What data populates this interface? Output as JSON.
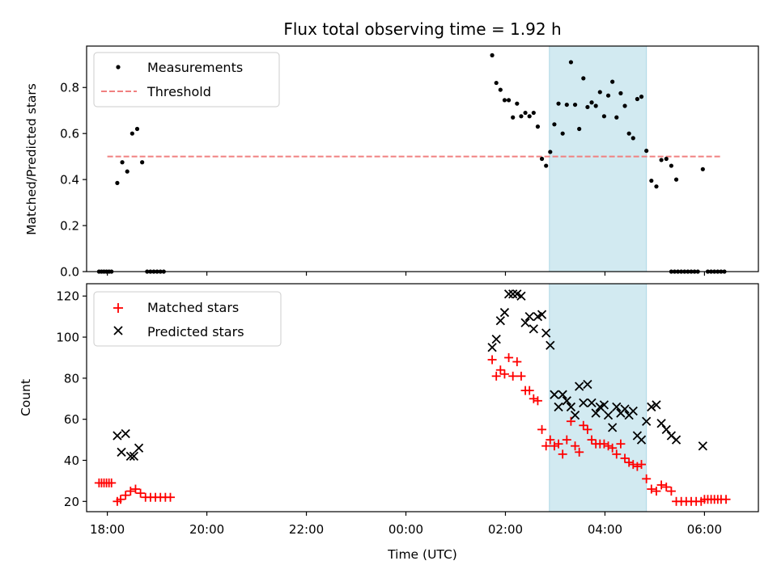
{
  "title": "Flux total observing time = 1.92 h",
  "colors": {
    "measurement": "#000000",
    "threshold": "#f08080",
    "matched": "#ff0000",
    "predicted": "#000000",
    "window": "#add8e6"
  },
  "chart_data": [
    {
      "type": "scatter",
      "ylabel": "Matched/Predicted stars",
      "ylim": [
        0,
        0.98
      ],
      "yticks": [
        "0.0",
        "0.2",
        "0.4",
        "0.6",
        "0.8"
      ],
      "xlim": [
        "17:35",
        "07:05"
      ],
      "shaded_interval": [
        "02:53",
        "04:50"
      ],
      "legend": [
        "Measurements",
        "Threshold"
      ],
      "legend_position": "upper-left",
      "threshold": {
        "value": 0.5,
        "x": [
          "18:00",
          "06:21"
        ]
      },
      "series": [
        {
          "name": "Measurements",
          "points": [
            [
              "17:50",
              0.0
            ],
            [
              "17:53",
              0.0
            ],
            [
              "17:56",
              0.0
            ],
            [
              "17:59",
              0.0
            ],
            [
              "18:02",
              0.0
            ],
            [
              "18:05",
              0.0
            ],
            [
              "18:12",
              0.385
            ],
            [
              "18:18",
              0.475
            ],
            [
              "18:24",
              0.435
            ],
            [
              "18:30",
              0.6
            ],
            [
              "18:36",
              0.62
            ],
            [
              "18:42",
              0.475
            ],
            [
              "18:48",
              0.0
            ],
            [
              "18:52",
              0.0
            ],
            [
              "18:56",
              0.0
            ],
            [
              "19:00",
              0.0
            ],
            [
              "19:04",
              0.0
            ],
            [
              "19:08",
              0.0
            ],
            [
              "01:44",
              0.94
            ],
            [
              "01:49",
              0.82
            ],
            [
              "01:54",
              0.79
            ],
            [
              "01:59",
              0.745
            ],
            [
              "02:04",
              0.745
            ],
            [
              "02:09",
              0.67
            ],
            [
              "02:14",
              0.73
            ],
            [
              "02:19",
              0.675
            ],
            [
              "02:24",
              0.69
            ],
            [
              "02:29",
              0.675
            ],
            [
              "02:34",
              0.69
            ],
            [
              "02:39",
              0.63
            ],
            [
              "02:44",
              0.49
            ],
            [
              "02:49",
              0.46
            ],
            [
              "02:54",
              0.52
            ],
            [
              "02:59",
              0.64
            ],
            [
              "03:04",
              0.73
            ],
            [
              "03:09",
              0.6
            ],
            [
              "03:14",
              0.725
            ],
            [
              "03:19",
              0.91
            ],
            [
              "03:24",
              0.725
            ],
            [
              "03:29",
              0.62
            ],
            [
              "03:34",
              0.84
            ],
            [
              "03:39",
              0.715
            ],
            [
              "03:44",
              0.735
            ],
            [
              "03:49",
              0.72
            ],
            [
              "03:54",
              0.78
            ],
            [
              "03:59",
              0.675
            ],
            [
              "04:04",
              0.765
            ],
            [
              "04:09",
              0.825
            ],
            [
              "04:14",
              0.67
            ],
            [
              "04:19",
              0.775
            ],
            [
              "04:24",
              0.72
            ],
            [
              "04:29",
              0.6
            ],
            [
              "04:34",
              0.58
            ],
            [
              "04:39",
              0.75
            ],
            [
              "04:44",
              0.76
            ],
            [
              "04:50",
              0.525
            ],
            [
              "04:56",
              0.395
            ],
            [
              "05:02",
              0.37
            ],
            [
              "05:08",
              0.485
            ],
            [
              "05:14",
              0.49
            ],
            [
              "05:20",
              0.46
            ],
            [
              "05:26",
              0.4
            ],
            [
              "05:20",
              0.0
            ],
            [
              "05:24",
              0.0
            ],
            [
              "05:28",
              0.0
            ],
            [
              "05:32",
              0.0
            ],
            [
              "05:36",
              0.0
            ],
            [
              "05:40",
              0.0
            ],
            [
              "05:44",
              0.0
            ],
            [
              "05:48",
              0.0
            ],
            [
              "05:52",
              0.0
            ],
            [
              "05:58",
              0.445
            ],
            [
              "06:04",
              0.0
            ],
            [
              "06:08",
              0.0
            ],
            [
              "06:12",
              0.0
            ],
            [
              "06:16",
              0.0
            ],
            [
              "06:20",
              0.0
            ],
            [
              "06:24",
              0.0
            ]
          ]
        }
      ]
    },
    {
      "type": "scatter",
      "xlabel": "Time (UTC)",
      "ylabel": "Count",
      "ylim": [
        15,
        126
      ],
      "yticks": [
        "20",
        "40",
        "60",
        "80",
        "100",
        "120"
      ],
      "xticks": [
        "18:00",
        "20:00",
        "22:00",
        "00:00",
        "02:00",
        "04:00",
        "06:00"
      ],
      "xlim": [
        "17:35",
        "07:05"
      ],
      "shaded_interval": [
        "02:53",
        "04:50"
      ],
      "legend": [
        "Matched stars",
        "Predicted stars"
      ],
      "legend_position": "upper-left",
      "series": [
        {
          "name": "Matched stars",
          "points": [
            [
              "17:50",
              29
            ],
            [
              "17:53",
              29
            ],
            [
              "17:56",
              29
            ],
            [
              "17:59",
              29
            ],
            [
              "18:02",
              29
            ],
            [
              "18:05",
              29
            ],
            [
              "18:12",
              20
            ],
            [
              "18:16",
              21
            ],
            [
              "18:22",
              23
            ],
            [
              "18:28",
              25
            ],
            [
              "18:34",
              26
            ],
            [
              "18:40",
              24
            ],
            [
              "18:46",
              22
            ],
            [
              "18:52",
              22
            ],
            [
              "18:58",
              22
            ],
            [
              "19:04",
              22
            ],
            [
              "19:10",
              22
            ],
            [
              "19:16",
              22
            ],
            [
              "01:44",
              89
            ],
            [
              "01:49",
              81
            ],
            [
              "01:54",
              84
            ],
            [
              "01:59",
              82
            ],
            [
              "02:04",
              90
            ],
            [
              "02:09",
              81
            ],
            [
              "02:14",
              88
            ],
            [
              "02:19",
              81
            ],
            [
              "02:24",
              74
            ],
            [
              "02:29",
              74
            ],
            [
              "02:34",
              70
            ],
            [
              "02:39",
              69
            ],
            [
              "02:44",
              55
            ],
            [
              "02:49",
              47
            ],
            [
              "02:54",
              50
            ],
            [
              "02:59",
              47
            ],
            [
              "03:04",
              48
            ],
            [
              "03:09",
              43
            ],
            [
              "03:14",
              50
            ],
            [
              "03:19",
              59
            ],
            [
              "03:24",
              47
            ],
            [
              "03:29",
              44
            ],
            [
              "03:34",
              57
            ],
            [
              "03:39",
              55
            ],
            [
              "03:44",
              50
            ],
            [
              "03:49",
              48
            ],
            [
              "03:54",
              48
            ],
            [
              "03:59",
              48
            ],
            [
              "04:04",
              47
            ],
            [
              "04:09",
              46
            ],
            [
              "04:14",
              43
            ],
            [
              "04:19",
              48
            ],
            [
              "04:24",
              41
            ],
            [
              "04:29",
              39
            ],
            [
              "04:34",
              38
            ],
            [
              "04:39",
              37
            ],
            [
              "04:44",
              38
            ],
            [
              "04:50",
              31
            ],
            [
              "04:56",
              26
            ],
            [
              "05:02",
              25
            ],
            [
              "05:08",
              28
            ],
            [
              "05:14",
              27
            ],
            [
              "05:20",
              25
            ],
            [
              "05:26",
              20
            ],
            [
              "05:32",
              20
            ],
            [
              "05:38",
              20
            ],
            [
              "05:44",
              20
            ],
            [
              "05:50",
              20
            ],
            [
              "05:56",
              20
            ],
            [
              "06:00",
              21
            ],
            [
              "06:04",
              21
            ],
            [
              "06:08",
              21
            ],
            [
              "06:12",
              21
            ],
            [
              "06:16",
              21
            ],
            [
              "06:20",
              21
            ],
            [
              "06:26",
              21
            ]
          ]
        },
        {
          "name": "Predicted stars",
          "points": [
            [
              "18:12",
              52
            ],
            [
              "18:17",
              44
            ],
            [
              "18:22",
              53
            ],
            [
              "18:28",
              42
            ],
            [
              "18:32",
              42
            ],
            [
              "18:38",
              46
            ],
            [
              "01:44",
              95
            ],
            [
              "01:49",
              99
            ],
            [
              "01:54",
              108
            ],
            [
              "01:59",
              112
            ],
            [
              "02:04",
              121
            ],
            [
              "02:09",
              121
            ],
            [
              "02:14",
              121
            ],
            [
              "02:19",
              120
            ],
            [
              "02:24",
              107
            ],
            [
              "02:29",
              110
            ],
            [
              "02:34",
              104
            ],
            [
              "02:39",
              110
            ],
            [
              "02:44",
              111
            ],
            [
              "02:49",
              102
            ],
            [
              "02:54",
              96
            ],
            [
              "02:59",
              72
            ],
            [
              "03:04",
              66
            ],
            [
              "03:09",
              72
            ],
            [
              "03:14",
              69
            ],
            [
              "03:19",
              66
            ],
            [
              "03:24",
              62
            ],
            [
              "03:29",
              76
            ],
            [
              "03:34",
              68
            ],
            [
              "03:39",
              77
            ],
            [
              "03:44",
              68
            ],
            [
              "03:49",
              63
            ],
            [
              "03:54",
              66
            ],
            [
              "03:59",
              67
            ],
            [
              "04:04",
              62
            ],
            [
              "04:09",
              56
            ],
            [
              "04:14",
              66
            ],
            [
              "04:19",
              63
            ],
            [
              "04:24",
              65
            ],
            [
              "04:29",
              62
            ],
            [
              "04:34",
              64
            ],
            [
              "04:39",
              52
            ],
            [
              "04:44",
              50
            ],
            [
              "04:50",
              59
            ],
            [
              "04:56",
              66
            ],
            [
              "05:02",
              67
            ],
            [
              "05:08",
              58
            ],
            [
              "05:14",
              55
            ],
            [
              "05:20",
              52
            ],
            [
              "05:26",
              50
            ],
            [
              "05:58",
              47
            ]
          ]
        }
      ]
    }
  ]
}
